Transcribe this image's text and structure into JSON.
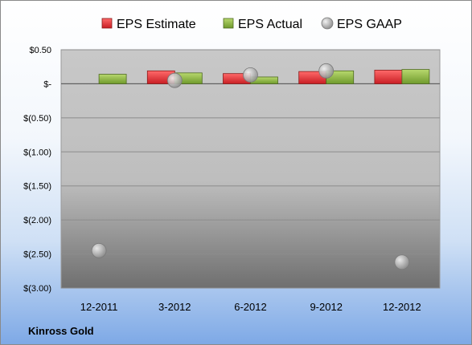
{
  "chart_data": {
    "type": "bar",
    "categories": [
      "12-2011",
      "3-2012",
      "6-2012",
      "9-2012",
      "12-2012"
    ],
    "series": [
      {
        "name": "EPS Estimate",
        "kind": "bar",
        "values": [
          null,
          0.19,
          0.15,
          0.18,
          0.2
        ],
        "color": "#e8383c"
      },
      {
        "name": "EPS Actual",
        "kind": "bar",
        "values": [
          0.14,
          0.16,
          0.1,
          0.19,
          0.21
        ],
        "color": "#8cb542"
      },
      {
        "name": "EPS GAAP",
        "kind": "scatter",
        "values": [
          -2.45,
          0.05,
          0.13,
          0.19,
          -2.62
        ],
        "color": "#b7b7b7"
      }
    ],
    "ylim": [
      -3.0,
      0.5
    ],
    "yticks": [
      {
        "value": 0.5,
        "label": "$0.50"
      },
      {
        "value": 0,
        "label": "$-"
      },
      {
        "value": -0.5,
        "label": "$(0.50)"
      },
      {
        "value": -1.0,
        "label": "$(1.00)"
      },
      {
        "value": -1.5,
        "label": "$(1.50)"
      },
      {
        "value": -2.0,
        "label": "$(2.00)"
      },
      {
        "value": -2.5,
        "label": "$(2.50)"
      },
      {
        "value": -3.0,
        "label": "$(3.00)"
      }
    ],
    "grid": true,
    "legend": "top"
  },
  "source_label": "Kinross Gold"
}
